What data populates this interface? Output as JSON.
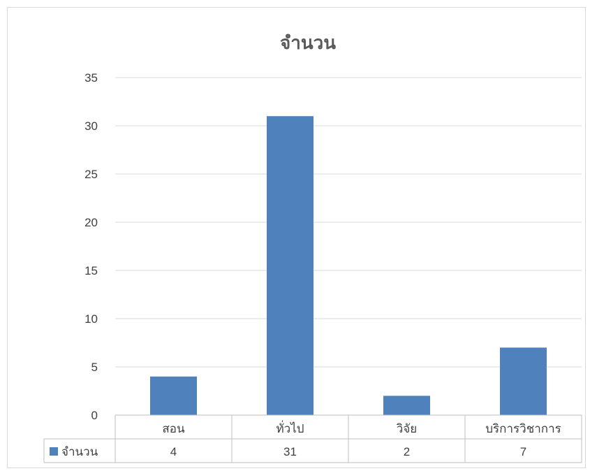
{
  "chart_data": {
    "type": "bar",
    "title": "จำนวน",
    "categories": [
      "สอน",
      "ทั่วไป",
      "วิจัย",
      "บริการวิชาการ"
    ],
    "series": [
      {
        "name": "จำนวน",
        "values": [
          4,
          31,
          2,
          7
        ],
        "color": "#4f81bd"
      }
    ],
    "ylim": [
      0,
      35
    ],
    "yticks": [
      0,
      5,
      10,
      15,
      20,
      25,
      30,
      35
    ],
    "grid": true,
    "data_table": true,
    "gridline_color": "#d9d9d9",
    "axis_color": "#bfbfbf"
  }
}
